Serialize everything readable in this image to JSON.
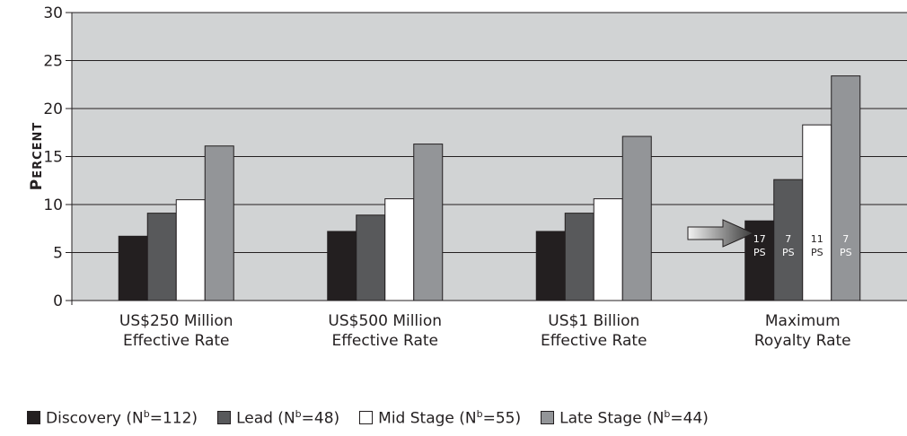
{
  "chart_data": {
    "type": "bar",
    "ylabel": "PERCENT",
    "xlabel": "",
    "ylim": [
      0,
      30
    ],
    "yticks": [
      "0",
      "5",
      "10",
      "15",
      "20",
      "25",
      "30"
    ],
    "grid": "horizontal",
    "legend_position": "bottom",
    "categories": [
      [
        "US$250 Million",
        "Effective Rate"
      ],
      [
        "US$500 Million",
        "Effective Rate"
      ],
      [
        "US$1 Billion",
        "Effective Rate"
      ],
      [
        "Maximum",
        "Royalty Rate"
      ]
    ],
    "series": [
      {
        "name": "Discovery (N",
        "sup": "b",
        "suffix": "=112)",
        "color": "#231f20",
        "values": [
          6.7,
          7.2,
          7.2,
          8.3
        ]
      },
      {
        "name": "Lead (N",
        "sup": "b",
        "suffix": "=48)",
        "color": "#58595b",
        "values": [
          9.1,
          8.9,
          9.1,
          12.6
        ]
      },
      {
        "name": "Mid Stage (N",
        "sup": "b",
        "suffix": "=55)",
        "color": "#ffffff",
        "values": [
          10.5,
          10.6,
          10.6,
          18.3
        ]
      },
      {
        "name": "Late Stage (N",
        "sup": "b",
        "suffix": "=44)",
        "color": "#939598",
        "values": [
          16.1,
          16.3,
          17.1,
          23.4
        ]
      }
    ],
    "annotations": {
      "category_index": 3,
      "numbers": [
        "17",
        "7",
        "11",
        "7"
      ],
      "unit": "PS"
    },
    "plot_background": "#d1d3d4",
    "arrow": "right-arrow"
  }
}
